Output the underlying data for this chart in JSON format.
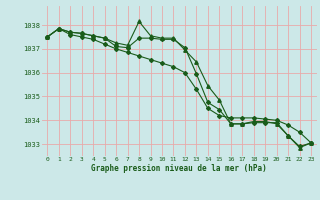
{
  "title": "Graphe pression niveau de la mer (hPa)",
  "background_color": "#cce8e8",
  "grid_color": "#e8aaaa",
  "line_color": "#1a5c1a",
  "xlim": [
    -0.5,
    23.5
  ],
  "ylim": [
    1032.5,
    1038.8
  ],
  "yticks": [
    1033,
    1034,
    1035,
    1036,
    1037,
    1038
  ],
  "xticks": [
    0,
    1,
    2,
    3,
    4,
    5,
    6,
    7,
    8,
    9,
    10,
    11,
    12,
    13,
    14,
    15,
    16,
    17,
    18,
    19,
    20,
    21,
    22,
    23
  ],
  "series1": [
    1037.5,
    1037.85,
    1037.7,
    1037.65,
    1037.55,
    1037.45,
    1037.25,
    1037.15,
    1038.15,
    1037.55,
    1037.45,
    1037.45,
    1036.95,
    1036.45,
    1035.45,
    1034.85,
    1033.85,
    1033.85,
    1033.95,
    1033.95,
    1033.85,
    1033.35,
    1032.85,
    1033.05
  ],
  "series2": [
    1037.5,
    1037.85,
    1037.7,
    1037.65,
    1037.55,
    1037.45,
    1037.1,
    1037.05,
    1037.45,
    1037.45,
    1037.4,
    1037.4,
    1037.05,
    1035.95,
    1034.75,
    1034.45,
    1033.85,
    1033.85,
    1033.9,
    1033.9,
    1033.9,
    1033.35,
    1032.9,
    1033.05
  ],
  "series3": [
    1037.5,
    1037.85,
    1037.6,
    1037.5,
    1037.4,
    1037.2,
    1037.0,
    1036.85,
    1036.7,
    1036.55,
    1036.4,
    1036.25,
    1036.0,
    1035.3,
    1034.5,
    1034.2,
    1034.1,
    1034.1,
    1034.1,
    1034.05,
    1034.0,
    1033.8,
    1033.5,
    1033.05
  ]
}
